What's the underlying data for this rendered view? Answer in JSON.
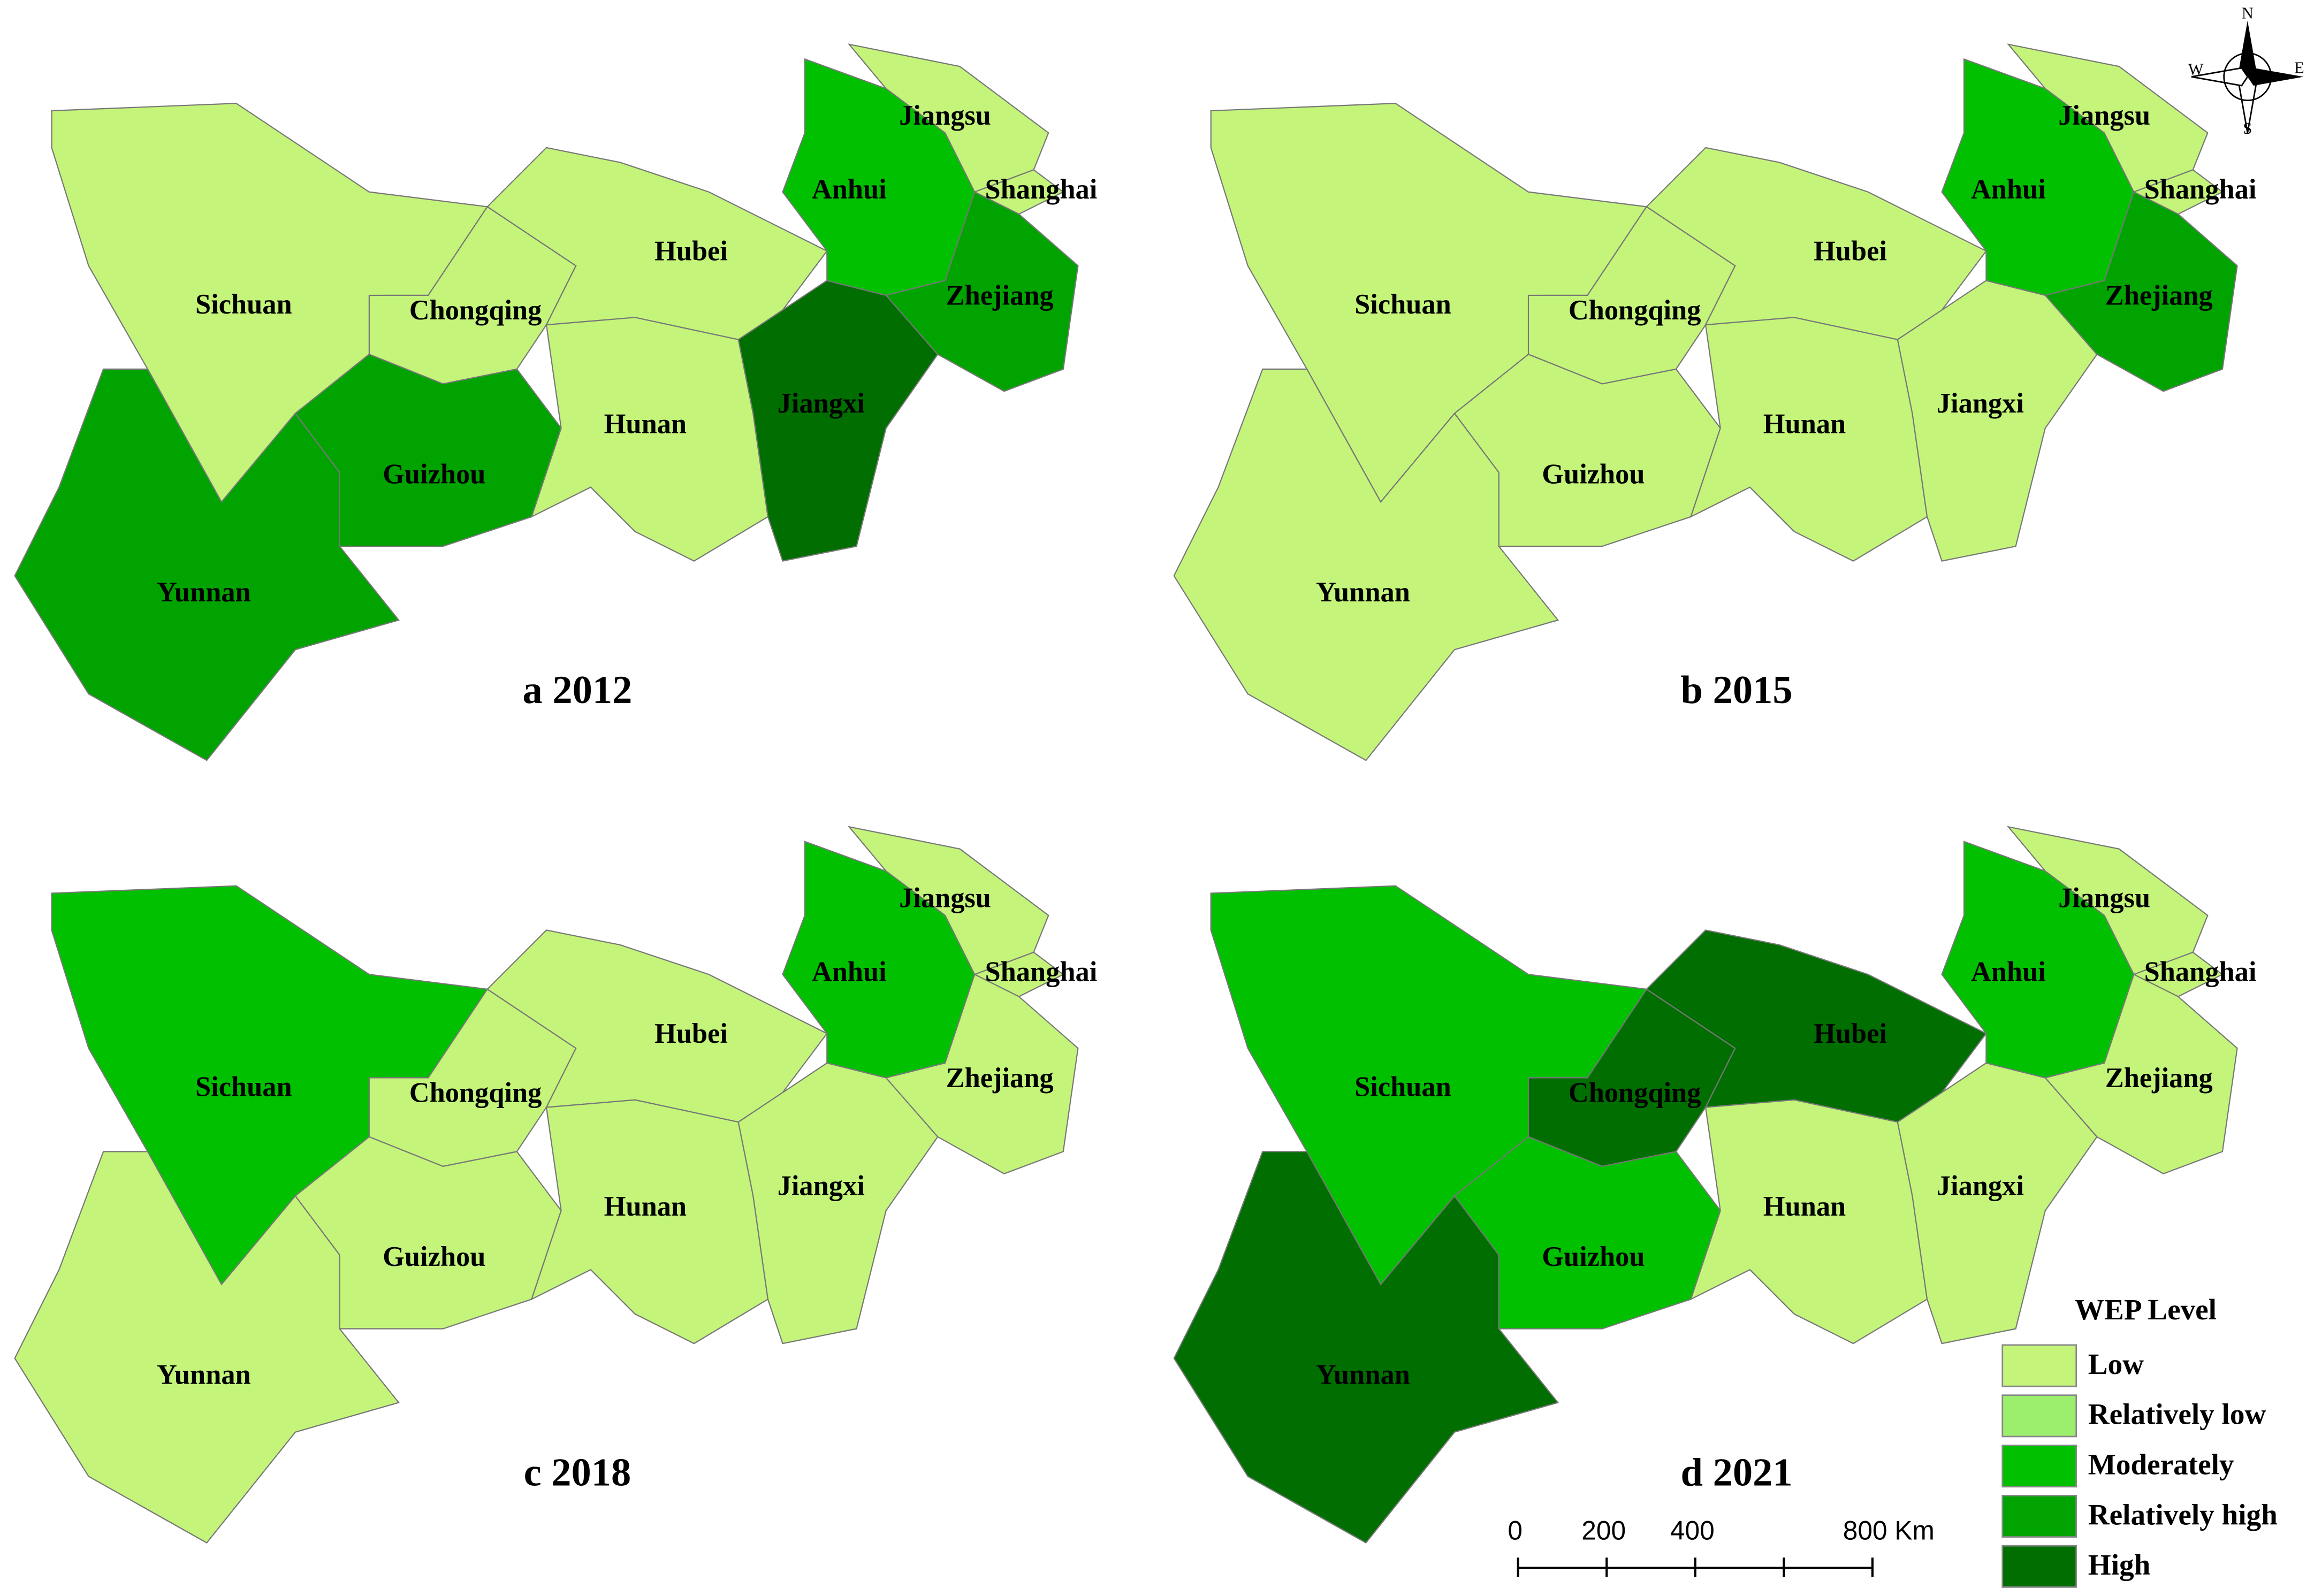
{
  "panels": [
    {
      "title": "a 2012",
      "provinces": [
        {
          "name": "Sichuan",
          "level": "Low"
        },
        {
          "name": "Chongqing",
          "level": "Low"
        },
        {
          "name": "Yunnan",
          "level": "Relatively high"
        },
        {
          "name": "Guizhou",
          "level": "Relatively high"
        },
        {
          "name": "Hubei",
          "level": "Low"
        },
        {
          "name": "Hunan",
          "level": "Low"
        },
        {
          "name": "Jiangxi",
          "level": "High"
        },
        {
          "name": "Anhui",
          "level": "Moderately"
        },
        {
          "name": "Jiangsu",
          "level": "Low"
        },
        {
          "name": "Shanghai",
          "level": "Low"
        },
        {
          "name": "Zhejiang",
          "level": "Relatively high"
        }
      ]
    },
    {
      "title": "b 2015",
      "provinces": [
        {
          "name": "Sichuan",
          "level": "Low"
        },
        {
          "name": "Chongqing",
          "level": "Low"
        },
        {
          "name": "Yunnan",
          "level": "Low"
        },
        {
          "name": "Guizhou",
          "level": "Low"
        },
        {
          "name": "Hubei",
          "level": "Low"
        },
        {
          "name": "Hunan",
          "level": "Low"
        },
        {
          "name": "Jiangxi",
          "level": "Low"
        },
        {
          "name": "Anhui",
          "level": "Moderately"
        },
        {
          "name": "Jiangsu",
          "level": "Low"
        },
        {
          "name": "Shanghai",
          "level": "Low"
        },
        {
          "name": "Zhejiang",
          "level": "Relatively high"
        }
      ]
    },
    {
      "title": "c 2018",
      "provinces": [
        {
          "name": "Sichuan",
          "level": "Moderately"
        },
        {
          "name": "Chongqing",
          "level": "Low"
        },
        {
          "name": "Yunnan",
          "level": "Low"
        },
        {
          "name": "Guizhou",
          "level": "Low"
        },
        {
          "name": "Hubei",
          "level": "Low"
        },
        {
          "name": "Hunan",
          "level": "Low"
        },
        {
          "name": "Jiangxi",
          "level": "Low"
        },
        {
          "name": "Anhui",
          "level": "Moderately"
        },
        {
          "name": "Jiangsu",
          "level": "Low"
        },
        {
          "name": "Shanghai",
          "level": "Low"
        },
        {
          "name": "Zhejiang",
          "level": "Low"
        }
      ]
    },
    {
      "title": "d 2021",
      "provinces": [
        {
          "name": "Sichuan",
          "level": "Moderately"
        },
        {
          "name": "Chongqing",
          "level": "High"
        },
        {
          "name": "Yunnan",
          "level": "High"
        },
        {
          "name": "Guizhou",
          "level": "Moderately"
        },
        {
          "name": "Hubei",
          "level": "High"
        },
        {
          "name": "Hunan",
          "level": "Low"
        },
        {
          "name": "Jiangxi",
          "level": "Low"
        },
        {
          "name": "Anhui",
          "level": "Moderately"
        },
        {
          "name": "Jiangsu",
          "level": "Low"
        },
        {
          "name": "Shanghai",
          "level": "Low"
        },
        {
          "name": "Zhejiang",
          "level": "Low"
        }
      ]
    }
  ],
  "legend": {
    "title": "WEP Level",
    "levels": [
      {
        "label": "Low",
        "color": "#c4f57a"
      },
      {
        "label": "Relatively low",
        "color": "#9cef6c"
      },
      {
        "label": "Moderately",
        "color": "#00c000"
      },
      {
        "label": "Relatively high",
        "color": "#00a300"
      },
      {
        "label": "High",
        "color": "#006e00"
      }
    ]
  },
  "scale_bar": {
    "labels": [
      "0",
      "200",
      "400",
      "800 Km"
    ]
  },
  "compass": {
    "n": "N",
    "e": "E",
    "s": "S",
    "w": "W"
  }
}
